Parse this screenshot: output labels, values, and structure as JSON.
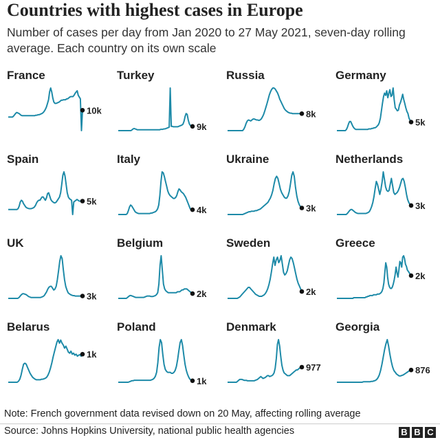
{
  "title": "Countries with highest cases in Europe",
  "subtitle": "Number of cases per day from Jan 2020 to 27 May 2021, seven-day rolling average. Each country on its own scale",
  "line_color": "#1d8aa8",
  "chart_data": {
    "type": "line",
    "x_range": [
      "Jan 2020",
      "27 May 2021"
    ],
    "independent_scales": true,
    "series": [
      {
        "name": "France",
        "end_label": "10k",
        "values": [
          0,
          0,
          0,
          0,
          0,
          2,
          5,
          8,
          10,
          9,
          8,
          6,
          4,
          3,
          3,
          3,
          3,
          3,
          3,
          3,
          3,
          3,
          3,
          3,
          3,
          3,
          4,
          4,
          5,
          5,
          6,
          7,
          8,
          10,
          13,
          17,
          22,
          30,
          38,
          56,
          64,
          55,
          42,
          33,
          30,
          30,
          31,
          32,
          33,
          35,
          37,
          37,
          38,
          38,
          38,
          40,
          40,
          42,
          44,
          45,
          45,
          45,
          48,
          52,
          55,
          58,
          48,
          44,
          40,
          -30,
          15
        ]
      },
      {
        "name": "Turkey",
        "end_label": "9k",
        "values": [
          0,
          0,
          0,
          0,
          0,
          0,
          0,
          0,
          0,
          0,
          0,
          0,
          0,
          2,
          4,
          5,
          4,
          3,
          2,
          2,
          2,
          2,
          2,
          2,
          2,
          2,
          2,
          2,
          2,
          2,
          2,
          2,
          2,
          2,
          2,
          2,
          2,
          2,
          2,
          2,
          3,
          3,
          3,
          4,
          4,
          5,
          6,
          7,
          8,
          100,
          10,
          10,
          9,
          9,
          9,
          9,
          9,
          10,
          11,
          12,
          13,
          15,
          22,
          33,
          40,
          38,
          25,
          16,
          12,
          10,
          10
        ]
      },
      {
        "name": "Russia",
        "end_label": "8k",
        "values": [
          0,
          0,
          0,
          0,
          0,
          0,
          0,
          0,
          0,
          0,
          0,
          0,
          0,
          0,
          3,
          8,
          15,
          20,
          22,
          21,
          20,
          22,
          24,
          24,
          23,
          22,
          22,
          21,
          22,
          24,
          28,
          33,
          40,
          48,
          56,
          65,
          74,
          80,
          85,
          88,
          88,
          86,
          82,
          78,
          72,
          65,
          60,
          55,
          50,
          45,
          42,
          40,
          38,
          37,
          36,
          36,
          35,
          35,
          35,
          35,
          35,
          35,
          35,
          35,
          35
        ]
      },
      {
        "name": "Germany",
        "end_label": "5k",
        "values": [
          0,
          0,
          0,
          0,
          0,
          0,
          0,
          0,
          0,
          2,
          6,
          12,
          16,
          16,
          12,
          8,
          5,
          3,
          2,
          2,
          2,
          2,
          2,
          2,
          2,
          2,
          2,
          2,
          2,
          2,
          3,
          3,
          3,
          4,
          4,
          5,
          5,
          6,
          8,
          10,
          14,
          22,
          35,
          48,
          60,
          66,
          62,
          70,
          58,
          66,
          72,
          60,
          62,
          75,
          55,
          40,
          38,
          35,
          36,
          45,
          50,
          56,
          64,
          55,
          48,
          40,
          34,
          30,
          22,
          18,
          15
        ]
      },
      {
        "name": "Spain",
        "end_label": "5k",
        "values": [
          0,
          0,
          0,
          0,
          0,
          0,
          0,
          0,
          0,
          2,
          8,
          18,
          22,
          20,
          14,
          10,
          6,
          4,
          3,
          2,
          2,
          2,
          3,
          4,
          6,
          10,
          16,
          20,
          22,
          22,
          26,
          30,
          30,
          26,
          22,
          28,
          38,
          40,
          32,
          24,
          20,
          18,
          16,
          16,
          18,
          22,
          26,
          30,
          40,
          60,
          82,
          90,
          80,
          60,
          40,
          30,
          26,
          24,
          22,
          -12,
          18,
          20,
          22,
          24,
          22,
          20,
          20,
          20,
          20
        ]
      },
      {
        "name": "Italy",
        "end_label": "4k",
        "values": [
          0,
          0,
          0,
          0,
          0,
          0,
          0,
          0,
          2,
          8,
          16,
          20,
          18,
          14,
          10,
          6,
          4,
          3,
          2,
          2,
          2,
          2,
          2,
          2,
          2,
          2,
          2,
          2,
          2,
          3,
          3,
          4,
          5,
          6,
          8,
          12,
          20,
          40,
          70,
          90,
          88,
          80,
          70,
          60,
          50,
          44,
          40,
          38,
          36,
          34,
          34,
          36,
          40,
          48,
          54,
          52,
          48,
          46,
          44,
          40,
          36,
          30,
          24,
          18,
          12,
          10,
          10
        ]
      },
      {
        "name": "Ukraine",
        "end_label": "3k",
        "values": [
          0,
          0,
          0,
          0,
          0,
          0,
          0,
          0,
          0,
          0,
          0,
          0,
          0,
          1,
          2,
          3,
          4,
          5,
          5,
          6,
          6,
          6,
          7,
          7,
          8,
          9,
          10,
          12,
          14,
          16,
          18,
          20,
          22,
          26,
          30,
          36,
          44,
          56,
          66,
          70,
          66,
          56,
          46,
          40,
          36,
          32,
          30,
          30,
          34,
          42,
          56,
          72,
          78,
          70,
          50,
          34,
          24,
          18,
          14,
          12
        ]
      },
      {
        "name": "Netherlands",
        "end_label": "3k",
        "values": [
          0,
          0,
          0,
          0,
          0,
          0,
          0,
          0,
          0,
          2,
          5,
          8,
          10,
          10,
          8,
          6,
          4,
          3,
          2,
          2,
          2,
          2,
          2,
          2,
          2,
          2,
          3,
          4,
          6,
          10,
          16,
          24,
          36,
          52,
          66,
          60,
          50,
          40,
          50,
          65,
          85,
          70,
          55,
          48,
          46,
          48,
          60,
          72,
          58,
          44,
          40,
          42,
          44,
          48,
          54,
          62,
          70,
          72,
          66,
          54,
          40,
          30,
          24,
          20,
          18
        ]
      },
      {
        "name": "UK",
        "end_label": "3k",
        "values": [
          0,
          0,
          0,
          0,
          0,
          0,
          0,
          0,
          0,
          2,
          5,
          8,
          10,
          10,
          9,
          8,
          6,
          4,
          3,
          2,
          2,
          2,
          2,
          2,
          2,
          2,
          2,
          2,
          3,
          4,
          6,
          10,
          14,
          20,
          24,
          26,
          26,
          22,
          18,
          20,
          26,
          40,
          60,
          80,
          92,
          86,
          62,
          40,
          26,
          18,
          12,
          10,
          8,
          7,
          6,
          6,
          5,
          5,
          5,
          5,
          5,
          5,
          5
        ]
      },
      {
        "name": "Belgium",
        "end_label": "2k",
        "values": [
          0,
          0,
          0,
          0,
          0,
          0,
          0,
          0,
          2,
          4,
          6,
          6,
          5,
          4,
          3,
          2,
          2,
          2,
          2,
          2,
          2,
          2,
          2,
          3,
          4,
          5,
          5,
          5,
          4,
          4,
          4,
          5,
          6,
          8,
          12,
          30,
          70,
          90,
          60,
          30,
          20,
          16,
          14,
          12,
          12,
          12,
          12,
          12,
          12,
          12,
          12,
          14,
          14,
          14,
          16,
          18,
          18,
          20,
          20,
          20,
          18,
          16,
          14,
          12,
          10
        ]
      },
      {
        "name": "Sweden",
        "end_label": "2k",
        "values": [
          0,
          0,
          0,
          0,
          0,
          0,
          0,
          0,
          0,
          1,
          2,
          4,
          6,
          8,
          10,
          12,
          14,
          16,
          16,
          14,
          12,
          10,
          8,
          6,
          5,
          4,
          3,
          3,
          3,
          4,
          5,
          7,
          10,
          14,
          20,
          28,
          38,
          50,
          60,
          48,
          56,
          60,
          52,
          55,
          62,
          50,
          38,
          34,
          36,
          40,
          48,
          56,
          60,
          58,
          52,
          44,
          36,
          28,
          22,
          18,
          14,
          10
        ]
      },
      {
        "name": "Greece",
        "end_label": "2k",
        "values": [
          0,
          0,
          0,
          0,
          0,
          0,
          0,
          0,
          0,
          0,
          0,
          0,
          0,
          0,
          0,
          0,
          0,
          0,
          1,
          1,
          1,
          1,
          1,
          1,
          1,
          1,
          1,
          1,
          1,
          1,
          1,
          2,
          2,
          3,
          3,
          4,
          4,
          4,
          4,
          5,
          5,
          5,
          5,
          6,
          6,
          6,
          7,
          8,
          10,
          14,
          22,
          36,
          50,
          44,
          30,
          20,
          16,
          14,
          14,
          16,
          20,
          26,
          34,
          44,
          36,
          30,
          40,
          52,
          50,
          44,
          58,
          60,
          56,
          48,
          45,
          40,
          38,
          36,
          34,
          32
        ]
      },
      {
        "name": "Belarus",
        "end_label": "1k",
        "values": [
          0,
          0,
          0,
          0,
          0,
          0,
          0,
          0,
          2,
          6,
          14,
          26,
          36,
          38,
          36,
          30,
          24,
          18,
          14,
          10,
          8,
          6,
          5,
          5,
          5,
          5,
          6,
          6,
          7,
          8,
          10,
          14,
          20,
          28,
          38,
          50,
          60,
          70,
          80,
          85,
          78,
          84,
          78,
          74,
          68,
          72,
          66,
          60,
          58,
          62,
          56,
          58,
          54,
          56,
          52,
          54,
          55,
          52,
          56
        ]
      },
      {
        "name": "Poland",
        "end_label": "1k",
        "values": [
          0,
          0,
          0,
          0,
          0,
          0,
          0,
          0,
          0,
          1,
          2,
          3,
          3,
          4,
          4,
          4,
          4,
          4,
          4,
          4,
          4,
          4,
          4,
          4,
          4,
          4,
          4,
          5,
          6,
          8,
          12,
          20,
          40,
          70,
          86,
          80,
          56,
          36,
          26,
          22,
          20,
          20,
          20,
          18,
          18,
          20,
          24,
          32,
          46,
          64,
          80,
          86,
          74,
          54,
          36,
          24,
          16,
          10,
          6,
          4,
          3
        ]
      },
      {
        "name": "Denmark",
        "end_label": "977",
        "values": [
          0,
          0,
          0,
          0,
          0,
          0,
          0,
          0,
          0,
          2,
          4,
          6,
          6,
          6,
          5,
          4,
          4,
          4,
          3,
          3,
          3,
          3,
          3,
          3,
          3,
          4,
          5,
          6,
          8,
          10,
          12,
          10,
          8,
          9,
          10,
          12,
          14,
          14,
          12,
          13,
          14,
          16,
          20,
          30,
          50,
          80,
          90,
          76,
          54,
          36,
          26,
          20,
          18,
          16,
          14,
          14,
          14,
          16,
          18,
          20,
          22,
          24,
          26,
          26,
          28,
          30,
          30,
          32
        ]
      },
      {
        "name": "Georgia",
        "end_label": "876",
        "values": [
          0,
          0,
          0,
          0,
          0,
          0,
          0,
          0,
          0,
          0,
          0,
          0,
          0,
          0,
          0,
          0,
          0,
          0,
          0,
          0,
          1,
          1,
          1,
          1,
          1,
          1,
          2,
          2,
          3,
          4,
          6,
          10,
          16,
          26,
          40,
          56,
          72,
          85,
          94,
          80,
          62,
          46,
          34,
          26,
          22,
          18,
          16,
          14,
          14,
          15,
          16,
          18,
          20,
          22,
          24,
          26,
          27
        ]
      }
    ]
  },
  "note": "Note: French government data revised down on 20 May, affecting rolling average",
  "source": "Source: Johns Hopkins University, national public health agencies",
  "logo": [
    "B",
    "B",
    "C"
  ]
}
